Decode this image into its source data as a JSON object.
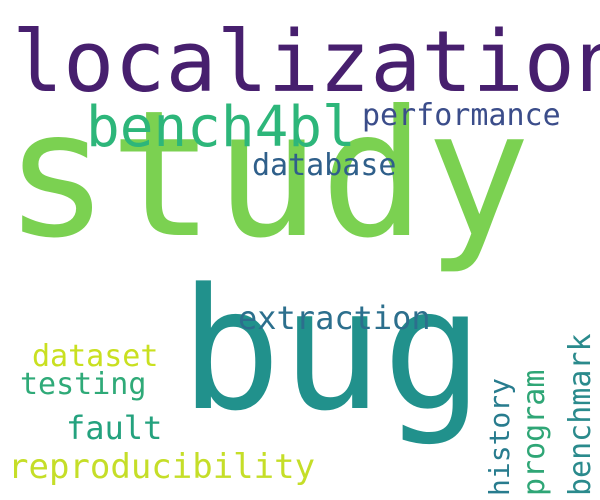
{
  "words": [
    {
      "id": "localization",
      "text": "localization",
      "color": "#471f6e"
    },
    {
      "id": "bench4bl",
      "text": "bench4bl",
      "color": "#2db67a"
    },
    {
      "id": "performance",
      "text": "performance",
      "color": "#3b4d8a"
    },
    {
      "id": "database",
      "text": "database",
      "color": "#2f5f8a"
    },
    {
      "id": "study",
      "text": "study",
      "color": "#7bd151"
    },
    {
      "id": "bug",
      "text": "bug",
      "color": "#21918c"
    },
    {
      "id": "extraction",
      "text": "extraction",
      "color": "#2c6f8d"
    },
    {
      "id": "dataset",
      "text": "dataset",
      "color": "#c9e020"
    },
    {
      "id": "testing",
      "text": "testing",
      "color": "#2faa78"
    },
    {
      "id": "fault",
      "text": "fault",
      "color": "#24a27e"
    },
    {
      "id": "reproducibility",
      "text": "reproducibility",
      "color": "#c5de28"
    },
    {
      "id": "history",
      "text": "history",
      "color": "#287c8e",
      "orientation": "vertical"
    },
    {
      "id": "program",
      "text": "program",
      "color": "#2fa676",
      "orientation": "vertical"
    },
    {
      "id": "benchmark",
      "text": "benchmark",
      "color": "#2a8a8c",
      "orientation": "vertical"
    }
  ]
}
